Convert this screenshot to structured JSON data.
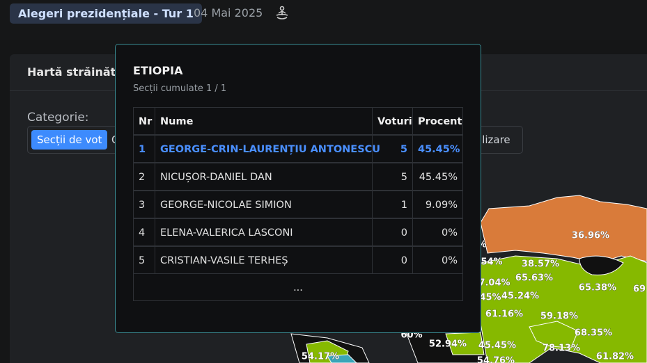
{
  "header": {
    "badge": "Alegeri prezidențiale - Tur 1",
    "date": "04 Mai 2025"
  },
  "panel": {
    "title": "Hartă străinăta",
    "category_label": "Categorie:",
    "buttons": [
      "Secții de vot",
      "C",
      "alizare"
    ]
  },
  "popup": {
    "title": "ETIOPIA",
    "subtitle": "Secții cumulate 1 / 1",
    "table": {
      "columns": [
        "Nr",
        "Nume",
        "Voturi",
        "Procent"
      ],
      "rows": [
        [
          "1",
          "GEORGE-CRIN-LAURENȚIU ANTONESCU",
          "5",
          "45.45%"
        ],
        [
          "2",
          "NICUȘOR-DANIEL DAN",
          "5",
          "45.45%"
        ],
        [
          "3",
          "GEORGE-NICOLAE SIMION",
          "1",
          "9.09%"
        ],
        [
          "4",
          "ELENA-VALERICA LASCONI",
          "0",
          "0%"
        ],
        [
          "5",
          "CRISTIAN-VASILE TERHEȘ",
          "0",
          "0%"
        ]
      ],
      "more": "..."
    }
  },
  "map": {
    "labels": [
      "36.96%",
      "%",
      "54%",
      "38.57%",
      "65.63%",
      "7.04%",
      "65.38%",
      "69",
      "45%",
      "45.24%",
      "61.16%",
      "59.18%",
      "68.35%",
      "60%",
      "52.94%",
      "45.45%",
      "78.13%",
      "54.17%",
      "61.82%",
      "54.76%"
    ]
  }
}
